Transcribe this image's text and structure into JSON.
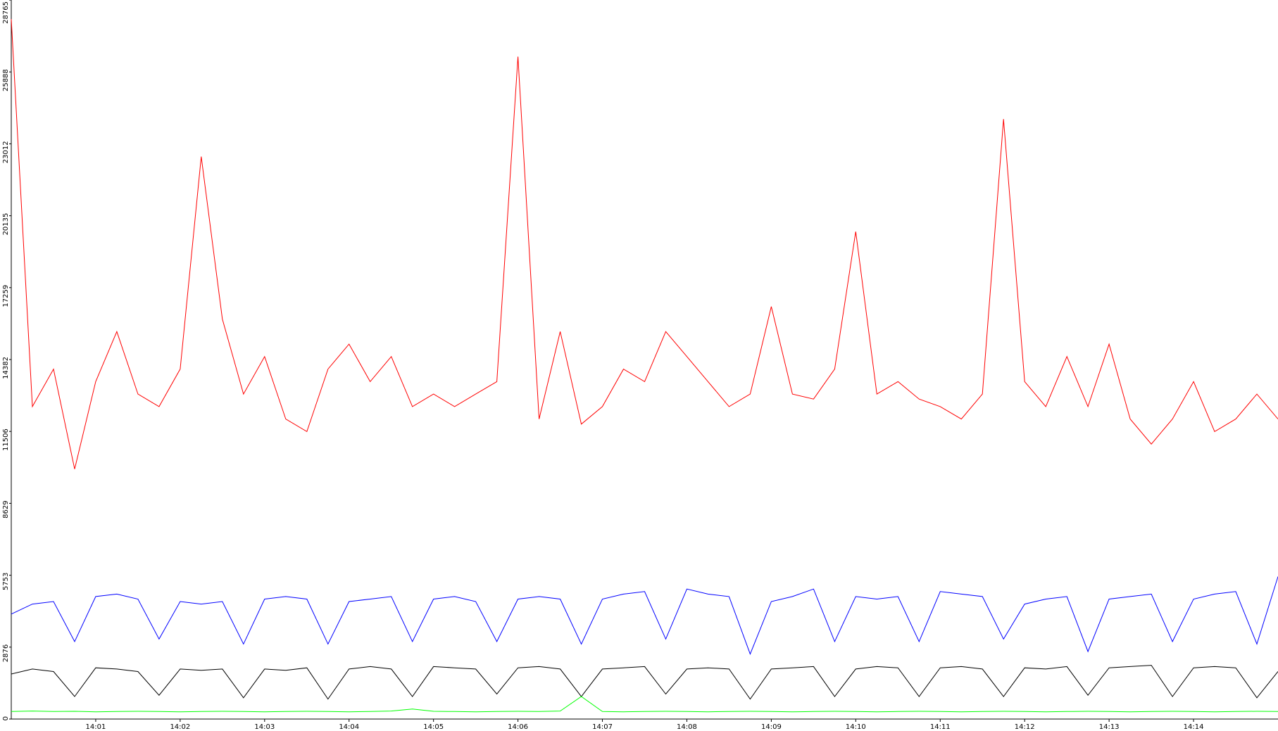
{
  "chart_data": {
    "type": "line",
    "x": [
      "14:00:00",
      "14:00:15",
      "14:00:30",
      "14:00:45",
      "14:01:00",
      "14:01:15",
      "14:01:30",
      "14:01:45",
      "14:02:00",
      "14:02:15",
      "14:02:30",
      "14:02:45",
      "14:03:00",
      "14:03:15",
      "14:03:30",
      "14:03:45",
      "14:04:00",
      "14:04:15",
      "14:04:30",
      "14:04:45",
      "14:05:00",
      "14:05:15",
      "14:05:30",
      "14:05:45",
      "14:06:00",
      "14:06:15",
      "14:06:30",
      "14:06:45",
      "14:07:00",
      "14:07:15",
      "14:07:30",
      "14:07:45",
      "14:08:00",
      "14:08:15",
      "14:08:30",
      "14:08:45",
      "14:09:00",
      "14:09:15",
      "14:09:30",
      "14:09:45",
      "14:10:00",
      "14:10:15",
      "14:10:30",
      "14:10:45",
      "14:11:00",
      "14:11:15",
      "14:11:30",
      "14:11:45",
      "14:12:00",
      "14:12:15",
      "14:12:30",
      "14:12:45",
      "14:13:00",
      "14:13:15",
      "14:13:30",
      "14:13:45",
      "14:14:00",
      "14:14:15",
      "14:14:30",
      "14:14:45",
      "14:15:00"
    ],
    "series": [
      {
        "color": "#ff0000",
        "values": [
          28000,
          12500,
          14000,
          10000,
          13500,
          15500,
          13000,
          12500,
          14000,
          22500,
          16000,
          13000,
          14500,
          12000,
          11500,
          14000,
          15000,
          13500,
          14500,
          12500,
          13000,
          12500,
          13000,
          13500,
          26500,
          12000,
          15500,
          11800,
          12500,
          14000,
          13500,
          15500,
          14500,
          13500,
          12500,
          13000,
          16500,
          13000,
          12800,
          14000,
          19500,
          13000,
          13500,
          12800,
          12500,
          12000,
          13000,
          24000,
          13500,
          12500,
          14500,
          12500,
          15000,
          12000,
          11000,
          12000,
          13500,
          11500,
          12000,
          13000,
          12000
        ]
      },
      {
        "color": "#0000ff",
        "values": [
          4200,
          4600,
          4700,
          3100,
          4900,
          5000,
          4800,
          3200,
          4700,
          4600,
          4700,
          3000,
          4800,
          4900,
          4800,
          3000,
          4700,
          4800,
          4900,
          3100,
          4800,
          4900,
          4700,
          3100,
          4800,
          4900,
          4800,
          3000,
          4800,
          5000,
          5100,
          3200,
          5200,
          5000,
          4900,
          2600,
          4700,
          4900,
          5200,
          3100,
          4900,
          4800,
          4900,
          3100,
          5100,
          5000,
          4900,
          3200,
          4600,
          4800,
          4900,
          2700,
          4800,
          4900,
          5000,
          3100,
          4800,
          5000,
          5100,
          3000,
          5700
        ]
      },
      {
        "color": "#000000",
        "values": [
          1800,
          2000,
          1900,
          900,
          2050,
          2000,
          1900,
          950,
          2000,
          1950,
          2000,
          850,
          2000,
          1950,
          2050,
          800,
          2000,
          2100,
          2000,
          900,
          2100,
          2050,
          2000,
          1000,
          2050,
          2100,
          2000,
          900,
          2000,
          2050,
          2100,
          1000,
          2000,
          2050,
          2000,
          800,
          2000,
          2050,
          2100,
          900,
          2000,
          2100,
          2050,
          900,
          2050,
          2100,
          2000,
          900,
          2050,
          2000,
          2100,
          950,
          2050,
          2100,
          2150,
          900,
          2050,
          2100,
          2050,
          850,
          1900
        ]
      },
      {
        "color": "#00ff00",
        "values": [
          300,
          320,
          300,
          310,
          290,
          300,
          310,
          300,
          290,
          300,
          310,
          300,
          290,
          300,
          310,
          300,
          290,
          300,
          320,
          400,
          310,
          300,
          290,
          300,
          310,
          300,
          320,
          900,
          300,
          290,
          300,
          310,
          300,
          290,
          300,
          310,
          300,
          290,
          300,
          310,
          300,
          290,
          300,
          310,
          300,
          290,
          300,
          310,
          300,
          290,
          300,
          310,
          300,
          290,
          300,
          310,
          300,
          290,
          300,
          310,
          300
        ]
      }
    ],
    "xlim": [
      "14:00:00",
      "14:15:00"
    ],
    "xticks": [
      "14:01",
      "14:02",
      "14:03",
      "14:04",
      "14:05",
      "14:06",
      "14:07",
      "14:08",
      "14:09",
      "14:10",
      "14:11",
      "14:12",
      "14:13",
      "14:14"
    ],
    "ylim": [
      0,
      28765
    ],
    "yticks": [
      0,
      2876,
      5753,
      8629,
      11506,
      14382,
      17259,
      20135,
      23012,
      25888,
      28765
    ],
    "grid": false
  }
}
